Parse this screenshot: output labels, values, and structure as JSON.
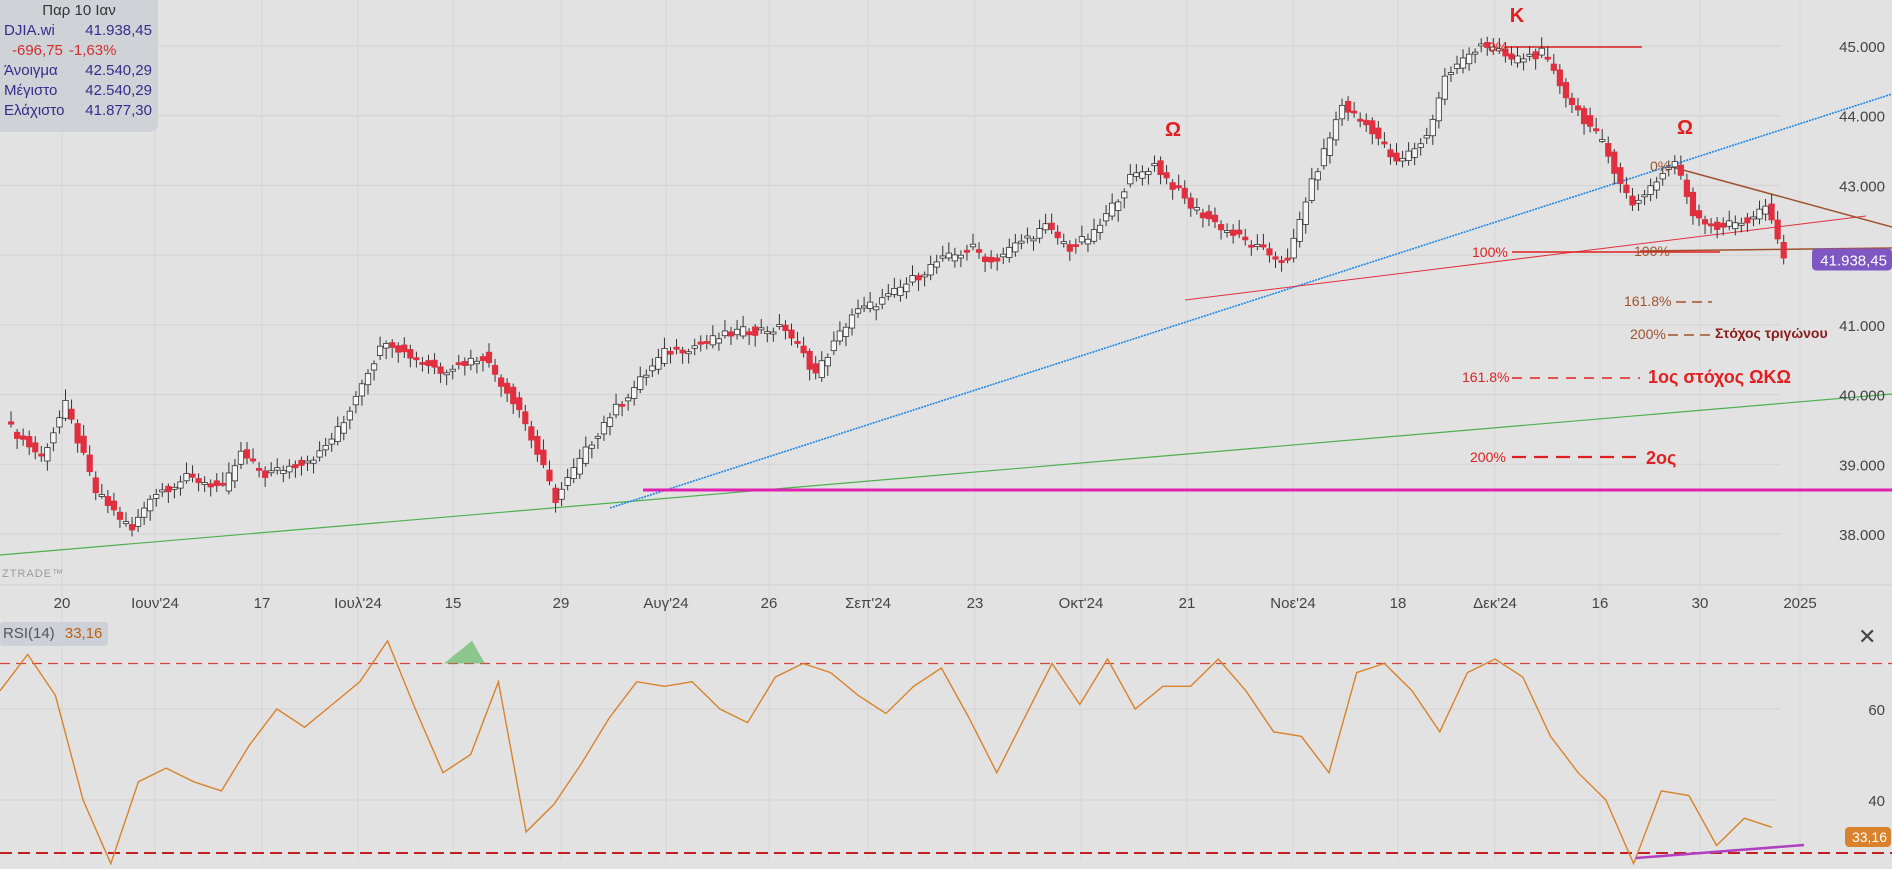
{
  "info": {
    "date": "Παρ 10 Ιαν",
    "symbol": "DJIA.wi",
    "last": "41.938,45",
    "change": "-696,75",
    "change_pct": "-1,63%",
    "open_label": "Άνοιγμα",
    "open": "42.540,29",
    "high_label": "Μέγιστο",
    "high": "42.540,29",
    "low_label": "Ελάχιστο",
    "low": "41.877,30"
  },
  "watermark": "ZTRADE™",
  "price_axis": {
    "ticks": [
      "45.000",
      "44.000",
      "43.000",
      "42.000",
      "41.000",
      "40.000",
      "39.000",
      "38.000"
    ],
    "current_label": "41.938,45"
  },
  "time_axis": {
    "ticks": [
      "20",
      "Ιουν'24",
      "17",
      "Ιουλ'24",
      "15",
      "29",
      "Αυγ'24",
      "26",
      "Σεπ'24",
      "23",
      "Οκτ'24",
      "21",
      "Νοε'24",
      "18",
      "Δεκ'24",
      "16",
      "30",
      "2025"
    ]
  },
  "rsi": {
    "label": "RSI(14)",
    "value": "33,16",
    "ticks": [
      "60",
      "40"
    ],
    "value_tag": "33,16"
  },
  "annotations": {
    "omega1": "Ω",
    "kappa": "Κ",
    "omega2": "Ω",
    "fib_0_a": "0%",
    "fib_0_b": "0%",
    "fib_100_a": "100%",
    "fib_100_b": "100%",
    "f1618_a": "161.8%",
    "f200_a": "200%",
    "target_triangle": "Στόχος τριγώνου",
    "f1618_b": "161.8%",
    "target_1": "1ος στόχος ΩΚΩ",
    "f200_b": "200%",
    "target_2": "2ος"
  },
  "colors": {
    "up": "#f5f5f5",
    "down": "#e03040",
    "annot": "#e02020",
    "blue": "#1e88e5",
    "green": "#4caf50",
    "magenta": "#e020b0",
    "orange": "#d9822b",
    "brown": "#a0522d"
  },
  "chart_data": {
    "type": "candlestick",
    "symbol": "DJIA.wi",
    "y_range": [
      37300,
      45400
    ],
    "price_path": [
      [
        0,
        39600
      ],
      [
        6,
        39100
      ],
      [
        10,
        39850
      ],
      [
        15,
        38600
      ],
      [
        21,
        38050
      ],
      [
        24,
        38550
      ],
      [
        30,
        38800
      ],
      [
        33,
        38750
      ],
      [
        36,
        38650
      ],
      [
        39,
        39150
      ],
      [
        43,
        38850
      ],
      [
        48,
        39000
      ],
      [
        52,
        39150
      ],
      [
        56,
        39600
      ],
      [
        59,
        40200
      ],
      [
        63,
        40800
      ],
      [
        66,
        40600
      ],
      [
        72,
        40350
      ],
      [
        79,
        40550
      ],
      [
        85,
        39800
      ],
      [
        91,
        38500
      ],
      [
        99,
        39600
      ],
      [
        109,
        40600
      ],
      [
        114,
        40700
      ],
      [
        121,
        40900
      ],
      [
        129,
        40950
      ],
      [
        134,
        40300
      ],
      [
        140,
        41150
      ],
      [
        146,
        41400
      ],
      [
        154,
        41900
      ],
      [
        160,
        42100
      ],
      [
        163,
        41900
      ],
      [
        168,
        42200
      ],
      [
        172,
        42400
      ],
      [
        176,
        42100
      ],
      [
        180,
        42300
      ],
      [
        186,
        43100
      ],
      [
        190,
        43300
      ],
      [
        196,
        42700
      ],
      [
        202,
        42350
      ],
      [
        208,
        42050
      ],
      [
        212,
        41900
      ],
      [
        215,
        42800
      ],
      [
        221,
        44150
      ],
      [
        226,
        43800
      ],
      [
        230,
        43300
      ],
      [
        235,
        43700
      ],
      [
        238,
        44550
      ],
      [
        244,
        45050
      ],
      [
        249,
        44800
      ],
      [
        254,
        44900
      ],
      [
        258,
        44300
      ],
      [
        264,
        43600
      ],
      [
        269,
        42700
      ],
      [
        271,
        42900
      ],
      [
        276,
        43350
      ],
      [
        279,
        42600
      ],
      [
        283,
        42400
      ],
      [
        288,
        42500
      ],
      [
        291,
        42700
      ],
      [
        294,
        41950
      ]
    ],
    "rsi_values": [
      64,
      72,
      63,
      40,
      26,
      44,
      47,
      44,
      42,
      52,
      60,
      56,
      61,
      66,
      75,
      60,
      46,
      50,
      66,
      33,
      39,
      48,
      58,
      66,
      65,
      66,
      60,
      57,
      67,
      70,
      68,
      63,
      59,
      65,
      69,
      58,
      46,
      58,
      70,
      61,
      71,
      60,
      65,
      65,
      71,
      64,
      55,
      54,
      46,
      68,
      70,
      64,
      55,
      68,
      71,
      67,
      54,
      46,
      40,
      26,
      42,
      41,
      30,
      36,
      34
    ]
  }
}
